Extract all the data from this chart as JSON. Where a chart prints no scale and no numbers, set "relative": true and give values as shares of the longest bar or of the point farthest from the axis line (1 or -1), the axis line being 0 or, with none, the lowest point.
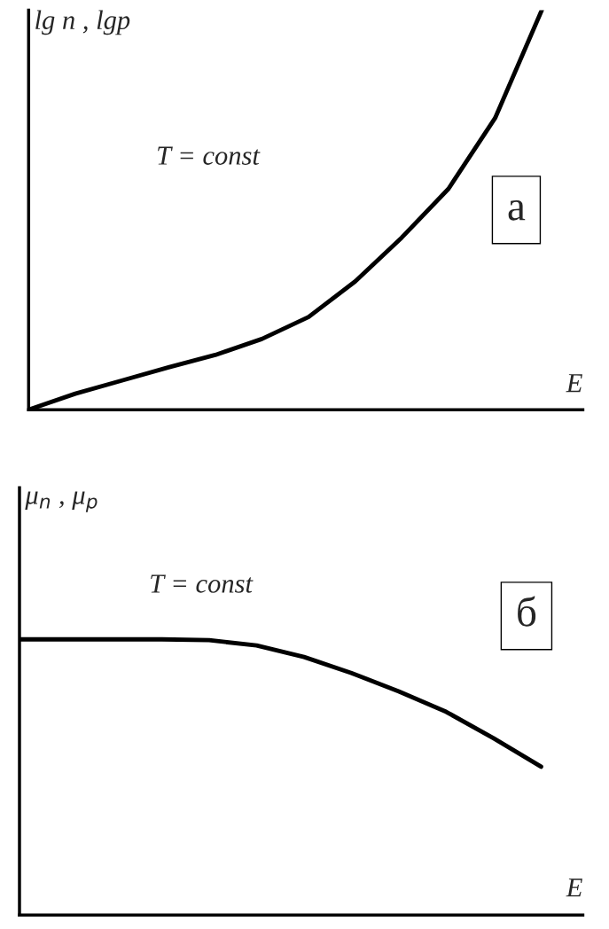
{
  "chart_data": [
    {
      "type": "line",
      "relative": true,
      "ylabel": "lg n , lgp",
      "xlabel": "E",
      "marker": "none",
      "line_style": "solid",
      "categories": [
        null,
        null,
        null,
        null,
        null,
        null,
        null,
        null,
        null,
        null,
        null,
        null
      ],
      "series": [
        {
          "color": "#000000",
          "values": [
            0,
            0.04,
            0.073,
            0.106,
            0.137,
            0.177,
            0.232,
            0.321,
            0.431,
            0.553,
            0.73,
            1
          ]
        }
      ],
      "annotations": [
        "T = const",
        "а"
      ]
    },
    {
      "type": "line",
      "relative": true,
      "ylabel": "μ$_{n}$ , μ$_{p}$",
      "xlabel": "E",
      "marker": "none",
      "line_style": "solid",
      "categories": [
        null,
        null,
        null,
        null,
        null,
        null,
        null,
        null,
        null,
        null,
        null,
        null
      ],
      "series": [
        {
          "color": "#000000",
          "values": [
            1,
            1,
            1,
            1,
            0.997,
            0.978,
            0.936,
            0.878,
            0.811,
            0.737,
            0.641,
            0.538
          ]
        }
      ],
      "annotations": [
        "T = const",
        "б"
      ]
    }
  ]
}
